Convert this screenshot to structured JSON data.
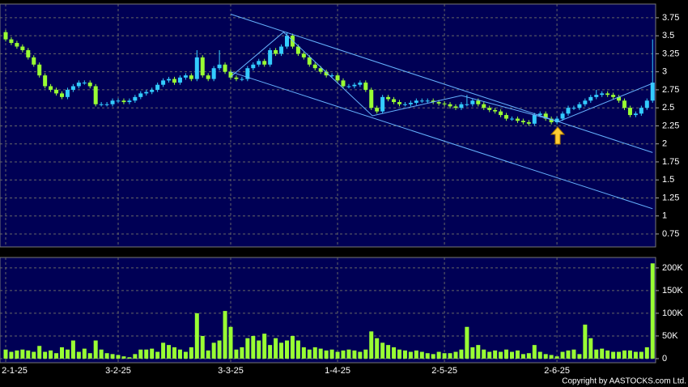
{
  "chart_data": [
    {
      "type": "candlestick",
      "up_color": "#33ccff",
      "down_color": "#99ff33",
      "line_color": "#66b3ff",
      "grid": true,
      "open": [
        3.55,
        3.45,
        3.4,
        3.35,
        3.3,
        3.2,
        3.1,
        2.95,
        2.8,
        2.75,
        2.7,
        2.65,
        2.75,
        2.8,
        2.85,
        2.85,
        2.8,
        2.55,
        2.55,
        2.55,
        2.6,
        2.6,
        2.58,
        2.6,
        2.65,
        2.7,
        2.72,
        2.75,
        2.82,
        2.88,
        2.9,
        2.85,
        2.92,
        2.95,
        2.9,
        3.2,
        2.95,
        2.9,
        3.05,
        3.1,
        3.0,
        2.92,
        2.9,
        2.9,
        3.05,
        3.1,
        3.15,
        3.1,
        3.3,
        3.25,
        3.35,
        3.5,
        3.35,
        3.25,
        3.2,
        3.1,
        3.05,
        3.0,
        2.95,
        2.95,
        2.88,
        2.8,
        2.8,
        2.82,
        2.85,
        2.75,
        2.5,
        2.45,
        2.65,
        2.62,
        2.58,
        2.55,
        2.55,
        2.57,
        2.6,
        2.6,
        2.6,
        2.58,
        2.56,
        2.55,
        2.52,
        2.5,
        2.55,
        2.55,
        2.6,
        2.55,
        2.5,
        2.47,
        2.45,
        2.4,
        2.35,
        2.35,
        2.32,
        2.3,
        2.28,
        2.4,
        2.42,
        2.35,
        2.3,
        2.35,
        2.42,
        2.5,
        2.5,
        2.55,
        2.6,
        2.65,
        2.68,
        2.7,
        2.68,
        2.65,
        2.6,
        2.5,
        2.4,
        2.42,
        2.5,
        2.6
      ],
      "high": [
        3.58,
        3.48,
        3.43,
        3.38,
        3.33,
        3.23,
        3.13,
        2.98,
        2.83,
        2.78,
        2.73,
        2.78,
        2.83,
        2.88,
        2.88,
        2.88,
        2.83,
        2.58,
        2.58,
        2.63,
        2.63,
        2.63,
        2.63,
        2.68,
        2.73,
        2.75,
        2.78,
        2.85,
        2.91,
        2.93,
        2.93,
        2.95,
        2.98,
        2.98,
        3.3,
        3.23,
        2.98,
        3.08,
        3.3,
        3.13,
        3.03,
        2.95,
        2.93,
        3.08,
        3.13,
        3.18,
        3.18,
        3.33,
        3.33,
        3.38,
        3.55,
        3.53,
        3.38,
        3.28,
        3.23,
        3.13,
        3.08,
        3.03,
        2.98,
        2.98,
        2.91,
        2.83,
        2.85,
        2.88,
        2.88,
        2.78,
        2.53,
        2.68,
        2.68,
        2.65,
        2.61,
        2.58,
        2.6,
        2.63,
        2.63,
        2.63,
        2.63,
        2.61,
        2.59,
        2.58,
        2.55,
        2.58,
        2.68,
        2.63,
        2.63,
        2.58,
        2.53,
        2.5,
        2.48,
        2.43,
        2.38,
        2.38,
        2.35,
        2.33,
        2.43,
        2.45,
        2.45,
        2.38,
        2.38,
        2.45,
        2.53,
        2.53,
        2.58,
        2.63,
        2.68,
        2.75,
        2.73,
        2.73,
        2.71,
        2.68,
        2.63,
        2.53,
        2.45,
        2.53,
        2.63,
        3.45
      ],
      "low": [
        3.42,
        3.37,
        3.32,
        3.27,
        3.17,
        3.07,
        2.92,
        2.77,
        2.72,
        2.67,
        2.62,
        2.62,
        2.72,
        2.77,
        2.82,
        2.77,
        2.52,
        2.52,
        2.52,
        2.52,
        2.57,
        2.55,
        2.55,
        2.57,
        2.62,
        2.67,
        2.69,
        2.72,
        2.79,
        2.85,
        2.82,
        2.82,
        2.89,
        2.87,
        2.87,
        2.92,
        2.87,
        2.87,
        3.02,
        2.97,
        2.89,
        2.87,
        2.87,
        2.87,
        3.02,
        3.07,
        3.07,
        3.07,
        3.22,
        3.22,
        3.32,
        3.32,
        3.22,
        3.17,
        3.07,
        3.02,
        2.97,
        2.92,
        2.92,
        2.85,
        2.77,
        2.77,
        2.77,
        2.79,
        2.72,
        2.47,
        2.42,
        2.42,
        2.59,
        2.55,
        2.52,
        2.52,
        2.52,
        2.54,
        2.57,
        2.57,
        2.55,
        2.53,
        2.52,
        2.49,
        2.47,
        2.47,
        2.52,
        2.52,
        2.52,
        2.47,
        2.44,
        2.42,
        2.37,
        2.32,
        2.32,
        2.29,
        2.27,
        2.25,
        2.25,
        2.37,
        2.32,
        2.27,
        2.27,
        2.32,
        2.39,
        2.47,
        2.47,
        2.52,
        2.57,
        2.62,
        2.65,
        2.65,
        2.62,
        2.57,
        2.47,
        2.37,
        2.37,
        2.39,
        2.47,
        2.57
      ],
      "close": [
        3.45,
        3.4,
        3.35,
        3.3,
        3.2,
        3.1,
        2.95,
        2.8,
        2.75,
        2.7,
        2.65,
        2.75,
        2.8,
        2.85,
        2.85,
        2.8,
        2.55,
        2.55,
        2.55,
        2.6,
        2.6,
        2.58,
        2.6,
        2.65,
        2.7,
        2.72,
        2.75,
        2.82,
        2.88,
        2.9,
        2.85,
        2.92,
        2.95,
        2.9,
        3.2,
        2.95,
        2.9,
        3.05,
        3.1,
        3.0,
        2.92,
        2.9,
        2.9,
        3.05,
        3.1,
        3.15,
        3.1,
        3.3,
        3.25,
        3.35,
        3.5,
        3.35,
        3.25,
        3.2,
        3.1,
        3.05,
        3.0,
        2.95,
        2.95,
        2.88,
        2.8,
        2.8,
        2.82,
        2.85,
        2.75,
        2.5,
        2.45,
        2.65,
        2.62,
        2.58,
        2.55,
        2.55,
        2.57,
        2.6,
        2.6,
        2.6,
        2.58,
        2.56,
        2.55,
        2.52,
        2.5,
        2.55,
        2.55,
        2.6,
        2.55,
        2.5,
        2.47,
        2.45,
        2.4,
        2.35,
        2.35,
        2.32,
        2.3,
        2.28,
        2.4,
        2.42,
        2.35,
        2.3,
        2.35,
        2.42,
        2.5,
        2.5,
        2.55,
        2.6,
        2.65,
        2.68,
        2.7,
        2.68,
        2.65,
        2.6,
        2.5,
        2.4,
        2.42,
        2.5,
        2.6,
        2.85
      ],
      "trendlines": [
        {
          "x": [
            40,
            115
          ],
          "y": [
            3.8,
            1.88
          ]
        },
        {
          "x": [
            40,
            115
          ],
          "y": [
            3.0,
            1.1
          ]
        },
        {
          "x": [
            40,
            49.4,
            65.2,
            81,
            98.3,
            115
          ],
          "y": [
            2.93,
            3.55,
            2.39,
            2.67,
            2.31,
            2.84
          ]
        }
      ],
      "ylim": [
        0.57,
        3.94
      ],
      "yticks": [
        0.75,
        1,
        1.25,
        1.5,
        1.75,
        2,
        2.25,
        2.5,
        2.75,
        3,
        3.25,
        3.5,
        3.75
      ]
    },
    {
      "type": "bar",
      "color": "#99ff33",
      "grid": true,
      "categories": [
        "2-1-25",
        null,
        null,
        null,
        null,
        null,
        null,
        null,
        null,
        null,
        null,
        null,
        null,
        null,
        null,
        null,
        null,
        null,
        null,
        null,
        "3-2-25",
        null,
        null,
        null,
        null,
        null,
        null,
        null,
        null,
        null,
        null,
        null,
        null,
        null,
        null,
        null,
        null,
        null,
        null,
        null,
        "3-3-25",
        null,
        null,
        null,
        null,
        null,
        null,
        null,
        null,
        null,
        null,
        null,
        null,
        null,
        null,
        null,
        null,
        null,
        null,
        "1-4-25",
        null,
        null,
        null,
        null,
        null,
        null,
        null,
        null,
        null,
        null,
        null,
        null,
        null,
        null,
        null,
        null,
        null,
        null,
        "2-5-25",
        null,
        null,
        null,
        null,
        null,
        null,
        null,
        null,
        null,
        null,
        null,
        null,
        null,
        null,
        null,
        null,
        null,
        null,
        null,
        "2-6-25",
        null,
        null,
        null,
        null,
        null,
        null,
        null,
        null,
        null,
        null,
        null,
        null,
        null,
        null,
        null,
        null,
        null
      ],
      "values": [
        20000,
        15000,
        18000,
        20000,
        18000,
        15000,
        28000,
        15000,
        18000,
        12000,
        25000,
        20000,
        40000,
        15000,
        22000,
        12000,
        40000,
        20000,
        12000,
        10000,
        8000,
        5000,
        3000,
        10000,
        20000,
        20000,
        22000,
        15000,
        35000,
        30000,
        25000,
        20000,
        15000,
        25000,
        100000,
        50000,
        18000,
        35000,
        40000,
        105000,
        70000,
        20000,
        25000,
        45000,
        50000,
        40000,
        55000,
        30000,
        45000,
        35000,
        40000,
        50000,
        40000,
        25000,
        20000,
        25000,
        22000,
        18000,
        20000,
        15000,
        18000,
        20000,
        18000,
        15000,
        20000,
        60000,
        45000,
        35000,
        30000,
        25000,
        20000,
        18000,
        15000,
        18000,
        15000,
        12000,
        10000,
        15000,
        12000,
        12000,
        15000,
        20000,
        70000,
        25000,
        30000,
        20000,
        15000,
        18000,
        15000,
        20000,
        15000,
        18000,
        10000,
        12000,
        30000,
        15000,
        10000,
        8000,
        5000,
        15000,
        18000,
        20000,
        10000,
        75000,
        45000,
        20000,
        22000,
        18000,
        15000,
        15000,
        18000,
        18000,
        15000,
        15000,
        25000,
        210000
      ],
      "ylim": [
        -9000,
        223000
      ],
      "yticks": [
        0,
        {
          "value": 50000,
          "label": "50K"
        },
        {
          "value": 100000,
          "label": "100K"
        },
        {
          "value": 150000,
          "label": "150K"
        },
        {
          "value": 200000,
          "label": "200K"
        }
      ]
    }
  ],
  "footer": "Copyright by AASTOCKS.com Ltd."
}
